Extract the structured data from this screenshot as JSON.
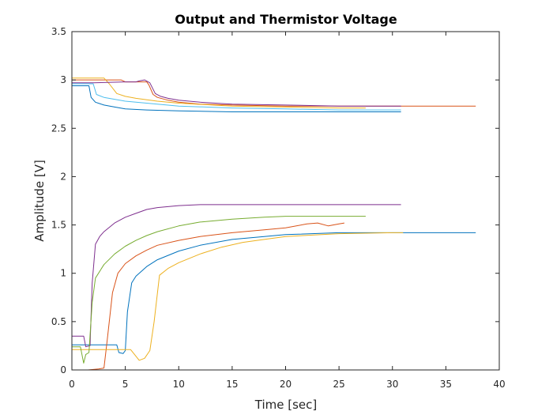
{
  "chart_data": {
    "type": "line",
    "title": "Output and Thermistor Voltage",
    "xlabel": "Time [sec]",
    "ylabel": "Amplitude [V]",
    "xlim": [
      0,
      40
    ],
    "ylim": [
      0,
      3.5
    ],
    "xticks": [
      0,
      5,
      10,
      15,
      20,
      25,
      30,
      35,
      40
    ],
    "yticks": [
      0,
      0.5,
      1,
      1.5,
      2,
      2.5,
      3,
      3.5
    ],
    "xtick_labels": [
      "0",
      "5",
      "10",
      "15",
      "20",
      "25",
      "30",
      "35",
      "40"
    ],
    "ytick_labels": [
      "0",
      "0.5",
      "1",
      "1.5",
      "2",
      "2.5",
      "3",
      "3.5"
    ],
    "grid": false,
    "legend": "none",
    "series": [
      {
        "color": "#0072BD",
        "points": [
          [
            0,
            0.26
          ],
          [
            1.5,
            0.26
          ],
          [
            3,
            0.26
          ],
          [
            4.2,
            0.26
          ],
          [
            4.4,
            0.18
          ],
          [
            4.8,
            0.17
          ],
          [
            5.0,
            0.2
          ],
          [
            5.2,
            0.6
          ],
          [
            5.6,
            0.9
          ],
          [
            6,
            0.97
          ],
          [
            7,
            1.07
          ],
          [
            8,
            1.14
          ],
          [
            10,
            1.23
          ],
          [
            12,
            1.29
          ],
          [
            15,
            1.35
          ],
          [
            18,
            1.38
          ],
          [
            20,
            1.4
          ],
          [
            25,
            1.42
          ],
          [
            30,
            1.42
          ],
          [
            35,
            1.42
          ],
          [
            37.8,
            1.42
          ]
        ]
      },
      {
        "color": "#D95319",
        "points": [
          [
            0,
            0.0
          ],
          [
            1.5,
            0.0
          ],
          [
            2.5,
            0.01
          ],
          [
            3.0,
            0.02
          ],
          [
            3.3,
            0.3
          ],
          [
            3.8,
            0.8
          ],
          [
            4.3,
            1.0
          ],
          [
            5,
            1.1
          ],
          [
            6,
            1.18
          ],
          [
            7,
            1.24
          ],
          [
            8,
            1.29
          ],
          [
            10,
            1.34
          ],
          [
            12,
            1.38
          ],
          [
            15,
            1.42
          ],
          [
            18,
            1.45
          ],
          [
            20,
            1.47
          ],
          [
            22,
            1.51
          ],
          [
            23,
            1.52
          ],
          [
            24,
            1.49
          ],
          [
            25,
            1.51
          ],
          [
            25.5,
            1.52
          ]
        ]
      },
      {
        "color": "#EDB120",
        "points": [
          [
            0,
            0.21
          ],
          [
            2,
            0.21
          ],
          [
            4,
            0.21
          ],
          [
            5.5,
            0.21
          ],
          [
            6.3,
            0.1
          ],
          [
            6.8,
            0.12
          ],
          [
            7.3,
            0.2
          ],
          [
            7.7,
            0.5
          ],
          [
            8.2,
            0.98
          ],
          [
            9,
            1.05
          ],
          [
            10,
            1.11
          ],
          [
            12,
            1.2
          ],
          [
            14,
            1.27
          ],
          [
            16,
            1.32
          ],
          [
            18,
            1.35
          ],
          [
            20,
            1.38
          ],
          [
            25,
            1.41
          ],
          [
            30,
            1.42
          ],
          [
            31,
            1.42
          ]
        ]
      },
      {
        "color": "#7E2F8E",
        "points": [
          [
            0,
            0.35
          ],
          [
            1.1,
            0.35
          ],
          [
            1.3,
            0.24
          ],
          [
            1.7,
            0.25
          ],
          [
            1.9,
            0.9
          ],
          [
            2.2,
            1.3
          ],
          [
            2.6,
            1.38
          ],
          [
            3,
            1.43
          ],
          [
            4,
            1.52
          ],
          [
            5,
            1.58
          ],
          [
            6,
            1.62
          ],
          [
            7,
            1.66
          ],
          [
            8,
            1.68
          ],
          [
            10,
            1.7
          ],
          [
            12,
            1.71
          ],
          [
            15,
            1.71
          ],
          [
            20,
            1.71
          ],
          [
            25,
            1.71
          ],
          [
            30,
            1.71
          ],
          [
            30.8,
            1.71
          ]
        ]
      },
      {
        "color": "#77AC30",
        "points": [
          [
            0,
            0.24
          ],
          [
            0.8,
            0.24
          ],
          [
            1.1,
            0.07
          ],
          [
            1.3,
            0.16
          ],
          [
            1.6,
            0.18
          ],
          [
            1.9,
            0.7
          ],
          [
            2.2,
            0.95
          ],
          [
            3,
            1.09
          ],
          [
            4,
            1.2
          ],
          [
            5,
            1.28
          ],
          [
            6,
            1.34
          ],
          [
            7,
            1.39
          ],
          [
            8,
            1.43
          ],
          [
            10,
            1.49
          ],
          [
            12,
            1.53
          ],
          [
            15,
            1.56
          ],
          [
            18,
            1.58
          ],
          [
            20,
            1.59
          ],
          [
            25,
            1.59
          ],
          [
            27.5,
            1.59
          ]
        ]
      },
      {
        "color": "#0072BD",
        "points": [
          [
            0,
            2.94
          ],
          [
            1,
            2.94
          ],
          [
            1.6,
            2.94
          ],
          [
            1.8,
            2.82
          ],
          [
            2.2,
            2.77
          ],
          [
            3,
            2.74
          ],
          [
            4,
            2.72
          ],
          [
            5,
            2.7
          ],
          [
            7,
            2.69
          ],
          [
            10,
            2.68
          ],
          [
            15,
            2.67
          ],
          [
            20,
            2.67
          ],
          [
            25,
            2.67
          ],
          [
            30,
            2.67
          ],
          [
            30.8,
            2.67
          ]
        ]
      },
      {
        "color": "#D95319",
        "points": [
          [
            0,
            3.0
          ],
          [
            3,
            3.0
          ],
          [
            4.6,
            3.0
          ],
          [
            5,
            2.98
          ],
          [
            6,
            2.98
          ],
          [
            7,
            2.98
          ],
          [
            7.2,
            2.95
          ],
          [
            7.6,
            2.85
          ],
          [
            8,
            2.82
          ],
          [
            9,
            2.79
          ],
          [
            10,
            2.77
          ],
          [
            12,
            2.75
          ],
          [
            15,
            2.74
          ],
          [
            20,
            2.73
          ],
          [
            30,
            2.73
          ],
          [
            37.8,
            2.73
          ]
        ]
      },
      {
        "color": "#EDB120",
        "points": [
          [
            0,
            3.02
          ],
          [
            1.5,
            3.02
          ],
          [
            3,
            3.02
          ],
          [
            3.5,
            2.96
          ],
          [
            4.2,
            2.86
          ],
          [
            5,
            2.83
          ],
          [
            6,
            2.81
          ],
          [
            8,
            2.78
          ],
          [
            10,
            2.76
          ],
          [
            15,
            2.73
          ],
          [
            20,
            2.72
          ],
          [
            25,
            2.71
          ],
          [
            27.5,
            2.71
          ]
        ]
      },
      {
        "color": "#7E2F8E",
        "points": [
          [
            0,
            2.97
          ],
          [
            2,
            2.97
          ],
          [
            5,
            2.98
          ],
          [
            6,
            2.98
          ],
          [
            6.3,
            2.99
          ],
          [
            6.8,
            3.0
          ],
          [
            7.3,
            2.97
          ],
          [
            7.8,
            2.86
          ],
          [
            8.3,
            2.83
          ],
          [
            9,
            2.81
          ],
          [
            10,
            2.79
          ],
          [
            12,
            2.77
          ],
          [
            15,
            2.75
          ],
          [
            20,
            2.74
          ],
          [
            25,
            2.73
          ],
          [
            30,
            2.73
          ],
          [
            30.8,
            2.73
          ]
        ]
      },
      {
        "color": "#4DBEEE",
        "points": [
          [
            0,
            2.96
          ],
          [
            1.5,
            2.96
          ],
          [
            2,
            2.96
          ],
          [
            2.3,
            2.85
          ],
          [
            3,
            2.82
          ],
          [
            4,
            2.8
          ],
          [
            5,
            2.78
          ],
          [
            7,
            2.76
          ],
          [
            10,
            2.73
          ],
          [
            15,
            2.71
          ],
          [
            20,
            2.7
          ],
          [
            25,
            2.69
          ],
          [
            30,
            2.69
          ],
          [
            30.8,
            2.69
          ]
        ]
      }
    ]
  }
}
